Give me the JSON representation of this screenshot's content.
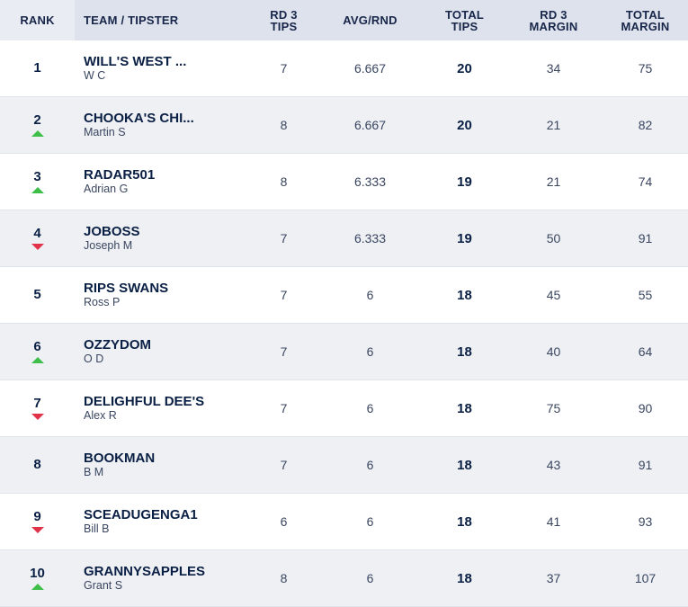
{
  "columns": {
    "rank": "RANK",
    "team": "TEAM / TIPSTER",
    "rd3_tips_l1": "RD 3",
    "rd3_tips_l2": "TIPS",
    "avg": "AVG/RND",
    "total_tips_l1": "TOTAL",
    "total_tips_l2": "TIPS",
    "rd3_margin_l1": "RD 3",
    "rd3_margin_l2": "MARGIN",
    "total_margin_l1": "TOTAL",
    "total_margin_l2": "MARGIN"
  },
  "colors": {
    "up": "#3fbf4a",
    "down": "#e0334a",
    "header_bg": "#dde2ec",
    "alt_row": "#eef0f4"
  },
  "rows": [
    {
      "rank": "1",
      "movement": "none",
      "team": "WILL'S WEST ...",
      "tipster": "W C",
      "rd3_tips": "7",
      "avg": "6.667",
      "total_tips": "20",
      "rd3_margin": "34",
      "total_margin": "75"
    },
    {
      "rank": "2",
      "movement": "up",
      "team": "CHOOKA'S CHI...",
      "tipster": "Martin S",
      "rd3_tips": "8",
      "avg": "6.667",
      "total_tips": "20",
      "rd3_margin": "21",
      "total_margin": "82"
    },
    {
      "rank": "3",
      "movement": "up",
      "team": "RADAR501",
      "tipster": "Adrian G",
      "rd3_tips": "8",
      "avg": "6.333",
      "total_tips": "19",
      "rd3_margin": "21",
      "total_margin": "74"
    },
    {
      "rank": "4",
      "movement": "down",
      "team": "JOBOSS",
      "tipster": "Joseph M",
      "rd3_tips": "7",
      "avg": "6.333",
      "total_tips": "19",
      "rd3_margin": "50",
      "total_margin": "91"
    },
    {
      "rank": "5",
      "movement": "none",
      "team": "RIPS SWANS",
      "tipster": "Ross P",
      "rd3_tips": "7",
      "avg": "6",
      "total_tips": "18",
      "rd3_margin": "45",
      "total_margin": "55"
    },
    {
      "rank": "6",
      "movement": "up",
      "team": "OZZYDOM",
      "tipster": "O D",
      "rd3_tips": "7",
      "avg": "6",
      "total_tips": "18",
      "rd3_margin": "40",
      "total_margin": "64"
    },
    {
      "rank": "7",
      "movement": "down",
      "team": "DELIGHFUL DEE'S",
      "tipster": "Alex R",
      "rd3_tips": "7",
      "avg": "6",
      "total_tips": "18",
      "rd3_margin": "75",
      "total_margin": "90"
    },
    {
      "rank": "8",
      "movement": "none",
      "team": "BOOKMAN",
      "tipster": "B M",
      "rd3_tips": "7",
      "avg": "6",
      "total_tips": "18",
      "rd3_margin": "43",
      "total_margin": "91"
    },
    {
      "rank": "9",
      "movement": "down",
      "team": "SCEADUGENGA1",
      "tipster": "Bill B",
      "rd3_tips": "6",
      "avg": "6",
      "total_tips": "18",
      "rd3_margin": "41",
      "total_margin": "93"
    },
    {
      "rank": "10",
      "movement": "up",
      "team": "GRANNYSAPPLES",
      "tipster": "Grant S",
      "rd3_tips": "8",
      "avg": "6",
      "total_tips": "18",
      "rd3_margin": "37",
      "total_margin": "107"
    }
  ]
}
